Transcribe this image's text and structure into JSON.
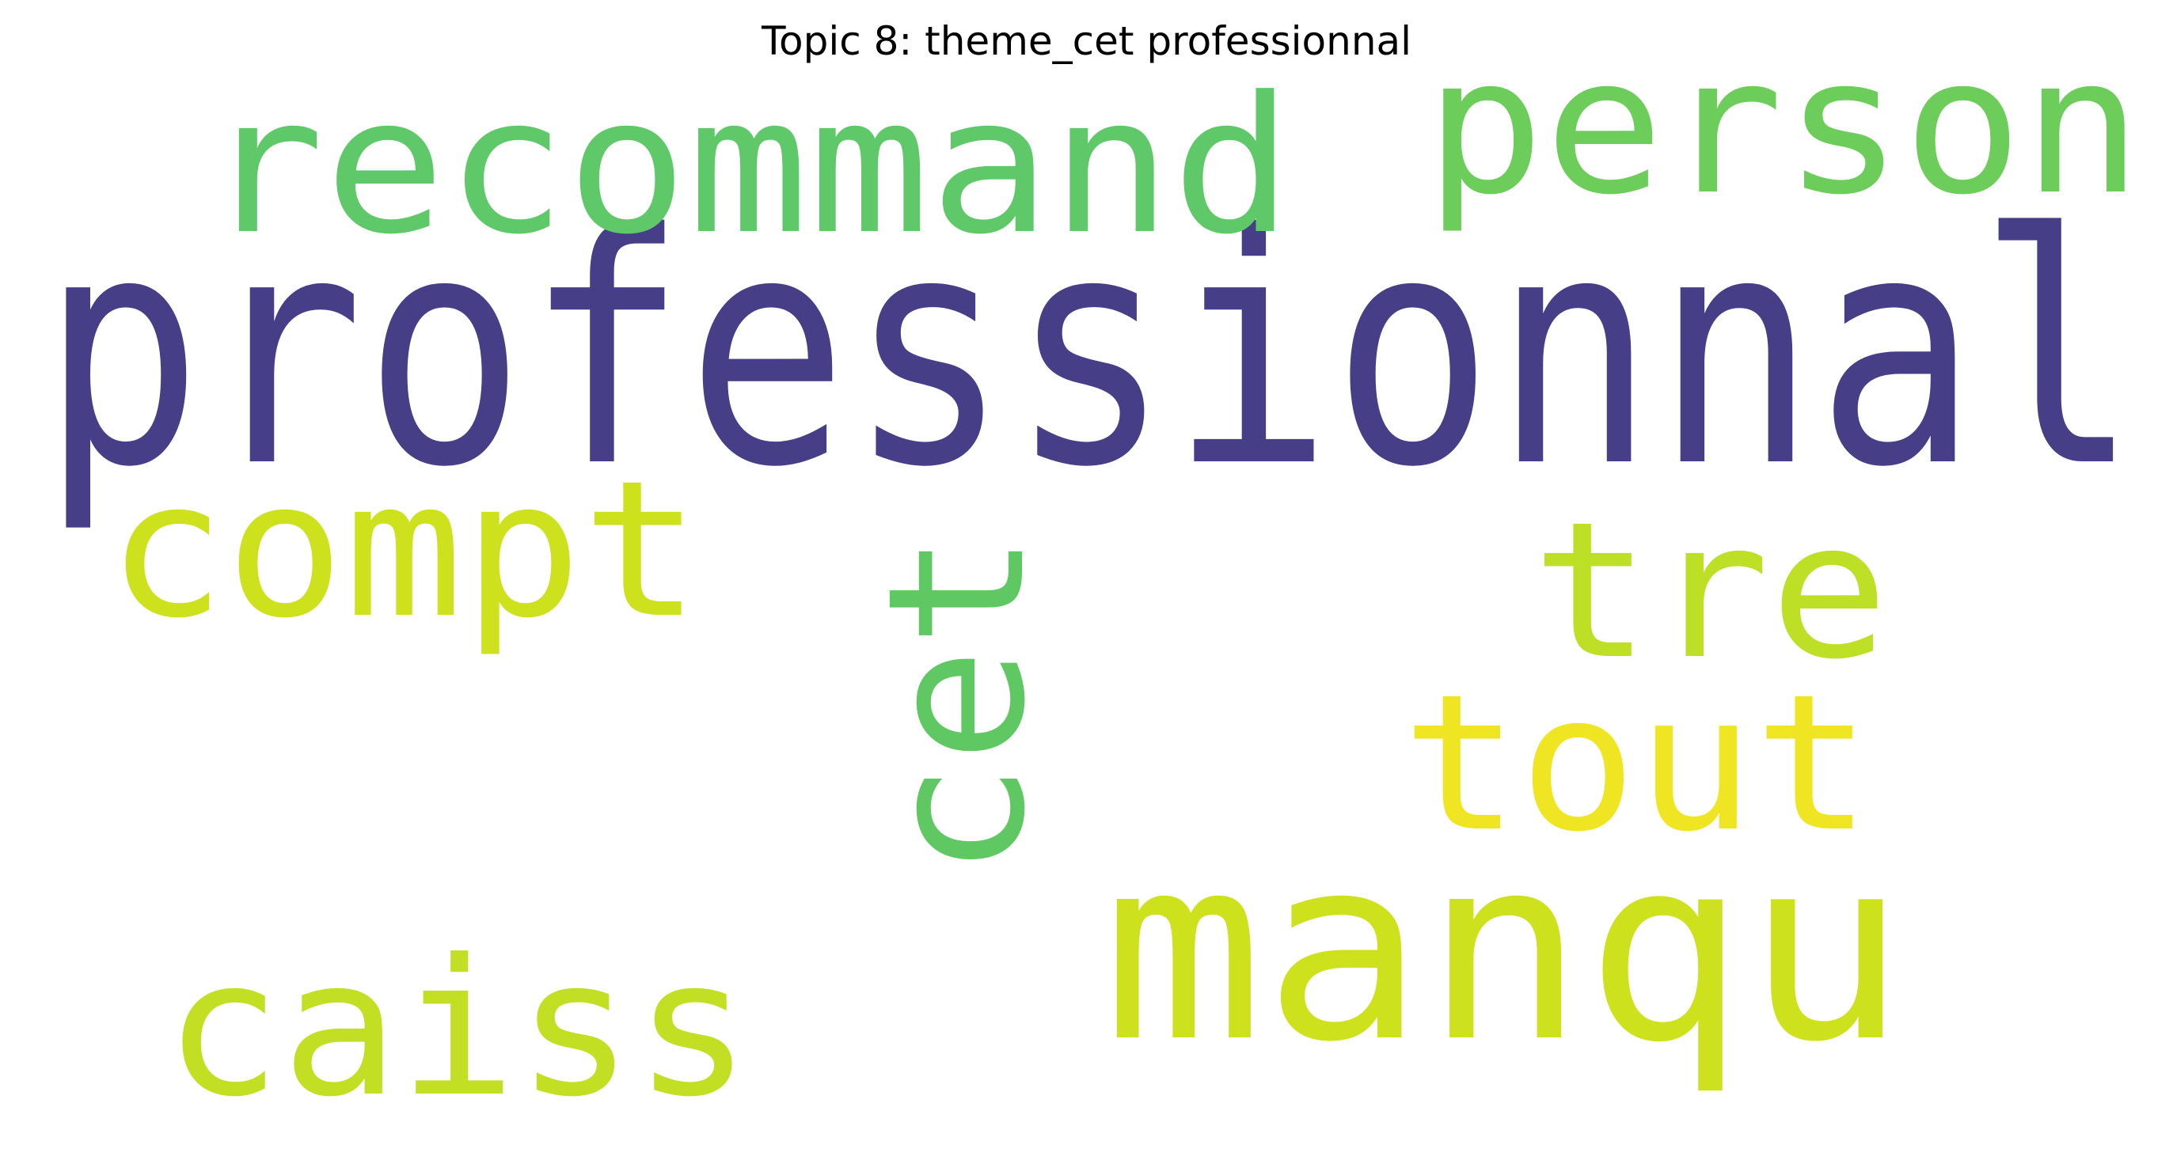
{
  "title": "Topic 8: theme_cet professionnal",
  "words": [
    {
      "text": "professionnal",
      "color": "#463f87"
    },
    {
      "text": "recommand",
      "color": "#5fc96a"
    },
    {
      "text": "person",
      "color": "#6ccd5a"
    },
    {
      "text": "compt",
      "color": "#cde11d"
    },
    {
      "text": "cet",
      "color": "#5fc863"
    },
    {
      "text": "tre",
      "color": "#bddf26"
    },
    {
      "text": "tout",
      "color": "#f0e522"
    },
    {
      "text": "manqu",
      "color": "#cde11d"
    },
    {
      "text": "caiss",
      "color": "#c2df23"
    }
  ]
}
